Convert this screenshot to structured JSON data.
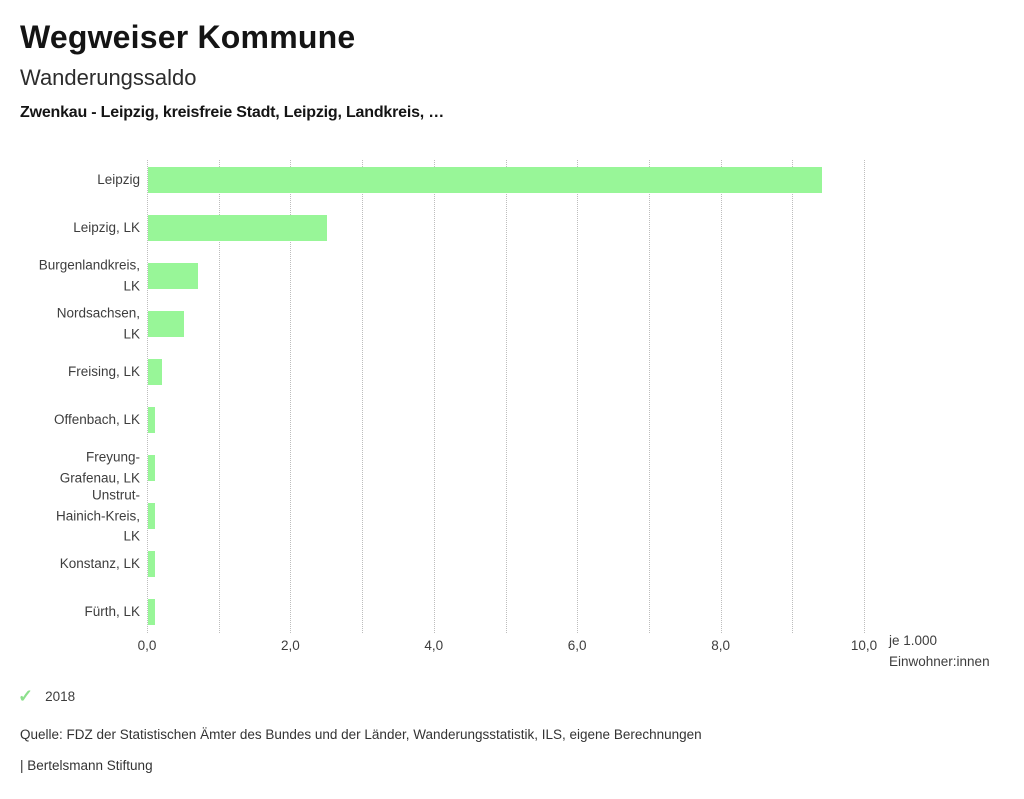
{
  "header": {
    "brand": "Wegweiser Kommune",
    "title": "Wanderungssaldo",
    "subtitle": "Zwenkau - Leipzig, kreisfreie Stadt, Leipzig, Landkreis, …"
  },
  "chart_data": {
    "type": "bar",
    "orientation": "horizontal",
    "title": "Wanderungssaldo",
    "categories": [
      "Leipzig",
      "Leipzig, LK",
      "Burgenlandkreis, LK",
      "Nordsachsen, LK",
      "Freising, LK",
      "Offenbach, LK",
      "Freyung-Grafenau, LK",
      "Unstrut-Hainich-Kreis, LK",
      "Konstanz, LK",
      "Fürth, LK"
    ],
    "category_lines": [
      [
        "Leipzig"
      ],
      [
        "Leipzig, LK"
      ],
      [
        "Burgenlandkreis,",
        "LK"
      ],
      [
        "Nordsachsen,",
        "LK"
      ],
      [
        "Freising, LK"
      ],
      [
        "Offenbach, LK"
      ],
      [
        "Freyung-",
        "Grafenau, LK"
      ],
      [
        "Unstrut-",
        "Hainich-Kreis,",
        "LK"
      ],
      [
        "Konstanz, LK"
      ],
      [
        "Fürth, LK"
      ]
    ],
    "series": [
      {
        "name": "2018",
        "values": [
          9.4,
          2.5,
          0.7,
          0.5,
          0.2,
          0.1,
          0.1,
          0.1,
          0.1,
          0.1
        ]
      }
    ],
    "xlim": [
      0,
      10
    ],
    "gridline_step": 1,
    "x_tick_values": [
      0,
      2,
      4,
      6,
      8,
      10
    ],
    "x_ticks": [
      "0,0",
      "2,0",
      "4,0",
      "6,0",
      "8,0",
      "10,0"
    ],
    "xlabel": "je 1.000 Einwohner:innen",
    "xlabel_lines": [
      "je 1.000",
      "Einwohner:innen"
    ],
    "grid": true,
    "legend_position": "bottom-left",
    "bar_color": "#98f698"
  },
  "legend": {
    "year": "2018",
    "check_color": "#8ce08c"
  },
  "footer": {
    "source": "Quelle: FDZ der Statistischen Ämter des Bundes und der Länder, Wanderungsstatistik, ILS, eigene Berechnungen",
    "attribution": "| Bertelsmann Stiftung"
  }
}
